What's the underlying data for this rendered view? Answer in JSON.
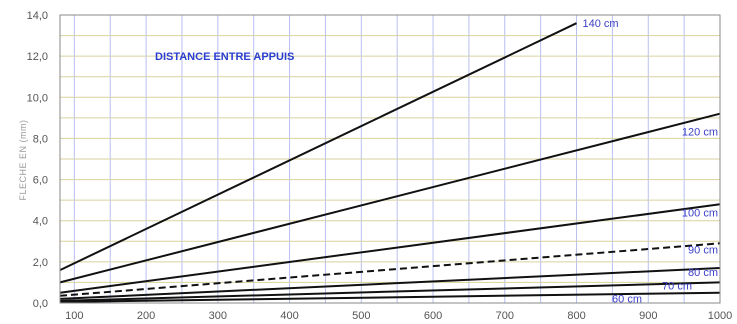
{
  "chart_data": {
    "type": "line",
    "title": "DISTANCE ENTRE APPUIS",
    "ylabel": "FLECHE EN (mm)",
    "xlabel": "",
    "xlim": [
      80,
      1000
    ],
    "ylim": [
      0,
      14
    ],
    "x_ticks": [
      100,
      200,
      300,
      400,
      500,
      600,
      700,
      800,
      900,
      1000
    ],
    "y_ticks": [
      "0,0",
      "2,0",
      "4,0",
      "6,0",
      "8,0",
      "10,0",
      "12,0",
      "14,0"
    ],
    "grid": true,
    "series": [
      {
        "name": "140 cm",
        "x": [
          80,
          800
        ],
        "y": [
          1.6,
          13.6
        ],
        "color": "#111111",
        "style": "solid"
      },
      {
        "name": "120 cm",
        "x": [
          80,
          1000
        ],
        "y": [
          1.0,
          9.2
        ],
        "color": "#111111",
        "style": "solid"
      },
      {
        "name": "100 cm",
        "x": [
          80,
          1000
        ],
        "y": [
          0.5,
          4.8
        ],
        "color": "#111111",
        "style": "solid"
      },
      {
        "name": "90 cm",
        "x": [
          80,
          1000
        ],
        "y": [
          0.35,
          2.9
        ],
        "color": "#111111",
        "style": "dashed"
      },
      {
        "name": "80 cm",
        "x": [
          80,
          1000
        ],
        "y": [
          0.2,
          1.7
        ],
        "color": "#111111",
        "style": "solid"
      },
      {
        "name": "70 cm",
        "x": [
          80,
          1000
        ],
        "y": [
          0.1,
          1.0
        ],
        "color": "#111111",
        "style": "solid"
      },
      {
        "name": "60 cm",
        "x": [
          80,
          1000
        ],
        "y": [
          0.05,
          0.5
        ],
        "color": "#111111",
        "style": "solid"
      }
    ],
    "colors": {
      "grid_vertical": "#b9bff0",
      "grid_horizontal": "#d8d2a0",
      "label": "#3b3fc8",
      "title": "#2a3fd0"
    }
  }
}
